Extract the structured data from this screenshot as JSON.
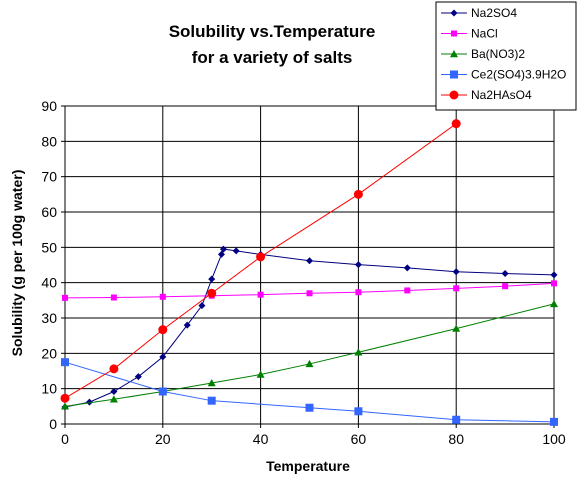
{
  "chart_data": {
    "type": "line",
    "title": [
      "Solubility vs.Temperature",
      "for a variety of salts"
    ],
    "xlabel": "Temperature",
    "ylabel": "Solubility (g per 100g water)",
    "xlim": [
      0,
      100
    ],
    "ylim": [
      0,
      90
    ],
    "x_ticks": [
      0,
      20,
      40,
      60,
      80,
      100
    ],
    "y_ticks": [
      0,
      10,
      20,
      30,
      40,
      50,
      60,
      70,
      80,
      90
    ],
    "grid": "major, both axes",
    "legend_position": "top-right",
    "series": [
      {
        "name": "Na2SO4",
        "color": "#000080",
        "marker": "diamond",
        "points": [
          [
            0,
            4.8
          ],
          [
            5,
            6.2
          ],
          [
            10,
            9.2
          ],
          [
            15,
            13.4
          ],
          [
            20,
            19.0
          ],
          [
            25,
            28.0
          ],
          [
            28,
            33.5
          ],
          [
            30,
            41.0
          ],
          [
            32,
            48.0
          ],
          [
            32.4,
            49.5
          ],
          [
            35,
            49.0
          ],
          [
            40,
            48.0
          ],
          [
            50,
            46.2
          ],
          [
            60,
            45.1
          ],
          [
            70,
            44.2
          ],
          [
            80,
            43.1
          ],
          [
            90,
            42.6
          ],
          [
            100,
            42.2
          ]
        ]
      },
      {
        "name": "NaCl",
        "color": "#ff00ff",
        "marker": "square",
        "points": [
          [
            0,
            35.7
          ],
          [
            10,
            35.8
          ],
          [
            20,
            36.0
          ],
          [
            30,
            36.3
          ],
          [
            40,
            36.6
          ],
          [
            50,
            37.0
          ],
          [
            60,
            37.3
          ],
          [
            70,
            37.8
          ],
          [
            80,
            38.4
          ],
          [
            90,
            39.0
          ],
          [
            100,
            39.8
          ]
        ]
      },
      {
        "name": "Ba(NO3)2",
        "color": "#008000",
        "marker": "triangle",
        "points": [
          [
            0,
            5.0
          ],
          [
            10,
            7.0
          ],
          [
            20,
            9.2
          ],
          [
            30,
            11.6
          ],
          [
            40,
            14.0
          ],
          [
            50,
            17.0
          ],
          [
            60,
            20.3
          ],
          [
            80,
            27.0
          ],
          [
            100,
            34.0
          ]
        ]
      },
      {
        "name": "Ce2(SO4)3.9H2O",
        "color": "#3366ff",
        "marker": "square-large",
        "points": [
          [
            0,
            17.5
          ],
          [
            20,
            9.2
          ],
          [
            30,
            6.6
          ],
          [
            50,
            4.6
          ],
          [
            60,
            3.6
          ],
          [
            80,
            1.2
          ],
          [
            100,
            0.6
          ]
        ]
      },
      {
        "name": "Na2HAsO4",
        "color": "#ff0000",
        "marker": "circle",
        "points": [
          [
            0,
            7.3
          ],
          [
            10,
            15.6
          ],
          [
            20,
            26.7
          ],
          [
            30,
            37.0
          ],
          [
            40,
            47.3
          ],
          [
            60,
            65.0
          ],
          [
            80,
            85.0
          ]
        ]
      }
    ]
  }
}
